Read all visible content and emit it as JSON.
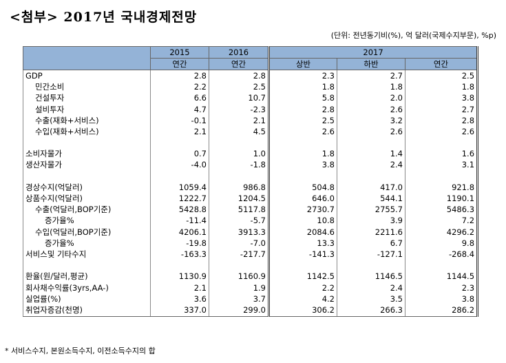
{
  "title": "<첨부> 2017년 국내경제전망",
  "unit_note": "(단위: 전년동기비(%), 억 달러(국제수지부문), %p)",
  "header": {
    "year_2015": "2015",
    "year_2016": "2016",
    "year_2017": "2017",
    "annual_2015": "연간",
    "annual_2016": "연간",
    "h1_2017": "상반",
    "h2_2017": "하반",
    "annual_2017": "연간"
  },
  "rows": [
    {
      "label": "GDP",
      "v": [
        "2.8",
        "2.8",
        "2.3",
        "2.7",
        "2.5"
      ]
    },
    {
      "label": "민간소비",
      "indent": 1,
      "v": [
        "2.2",
        "2.5",
        "1.8",
        "1.8",
        "1.8"
      ]
    },
    {
      "label": "건설투자",
      "indent": 1,
      "v": [
        "6.6",
        "10.7",
        "5.8",
        "2.0",
        "3.8"
      ]
    },
    {
      "label": "설비투자",
      "indent": 1,
      "v": [
        "4.7",
        "-2.3",
        "2.8",
        "2.6",
        "2.7"
      ]
    },
    {
      "label": "수출(재화+서비스)",
      "indent": 1,
      "v": [
        "-0.1",
        "2.1",
        "2.5",
        "3.2",
        "2.8"
      ]
    },
    {
      "label": "수입(재화+서비스)",
      "indent": 1,
      "v": [
        "2.1",
        "4.5",
        "2.6",
        "2.6",
        "2.6"
      ]
    },
    {
      "label": "",
      "v": [
        "",
        "",
        "",
        "",
        ""
      ]
    },
    {
      "label": "소비자물가",
      "v": [
        "0.7",
        "1.0",
        "1.8",
        "1.4",
        "1.6"
      ]
    },
    {
      "label": "생산자물가",
      "v": [
        "-4.0",
        "-1.8",
        "3.8",
        "2.4",
        "3.1"
      ]
    },
    {
      "label": "",
      "v": [
        "",
        "",
        "",
        "",
        ""
      ]
    },
    {
      "label": "경상수지(억달러)",
      "v": [
        "1059.4",
        "986.8",
        "504.8",
        "417.0",
        "921.8"
      ]
    },
    {
      "label": "상품수지(억달러)",
      "v": [
        "1222.7",
        "1204.5",
        "646.0",
        "544.1",
        "1190.1"
      ]
    },
    {
      "label": "수출(억달러,BOP기준)",
      "indent": 1,
      "v": [
        "5428.8",
        "5117.8",
        "2730.7",
        "2755.7",
        "5486.3"
      ]
    },
    {
      "label": "증가율%",
      "indent": 2,
      "v": [
        "-11.4",
        "-5.7",
        "10.8",
        "3.9",
        "7.2"
      ]
    },
    {
      "label": "수입(억달러,BOP기준)",
      "indent": 1,
      "v": [
        "4206.1",
        "3913.3",
        "2084.6",
        "2211.6",
        "4296.2"
      ]
    },
    {
      "label": "증가율%",
      "indent": 2,
      "v": [
        "-19.8",
        "-7.0",
        "13.3",
        "6.7",
        "9.8"
      ]
    },
    {
      "label": "서비스및   기타수지",
      "indent": 0,
      "v": [
        "-163.3",
        "-217.7",
        "-141.3",
        "-127.1",
        "-268.4"
      ]
    },
    {
      "label": "",
      "v": [
        "",
        "",
        "",
        "",
        ""
      ]
    },
    {
      "label": "환율(원/달러,평균)",
      "v": [
        "1130.9",
        "1160.9",
        "1142.5",
        "1146.5",
        "1144.5"
      ]
    },
    {
      "label": "회사채수익률(3yrs,AA-)",
      "v": [
        "2.1",
        "1.9",
        "2.2",
        "2.4",
        "2.3"
      ]
    },
    {
      "label": "실업률(%)",
      "v": [
        "3.6",
        "3.7",
        "4.2",
        "3.5",
        "3.8"
      ]
    },
    {
      "label": "취업자증감(천명)",
      "v": [
        "337.0",
        "299.0",
        "306.2",
        "266.3",
        "286.2"
      ]
    }
  ],
  "footnote": "* 서비스수지, 본원소득수지, 이전소득수지의 합"
}
